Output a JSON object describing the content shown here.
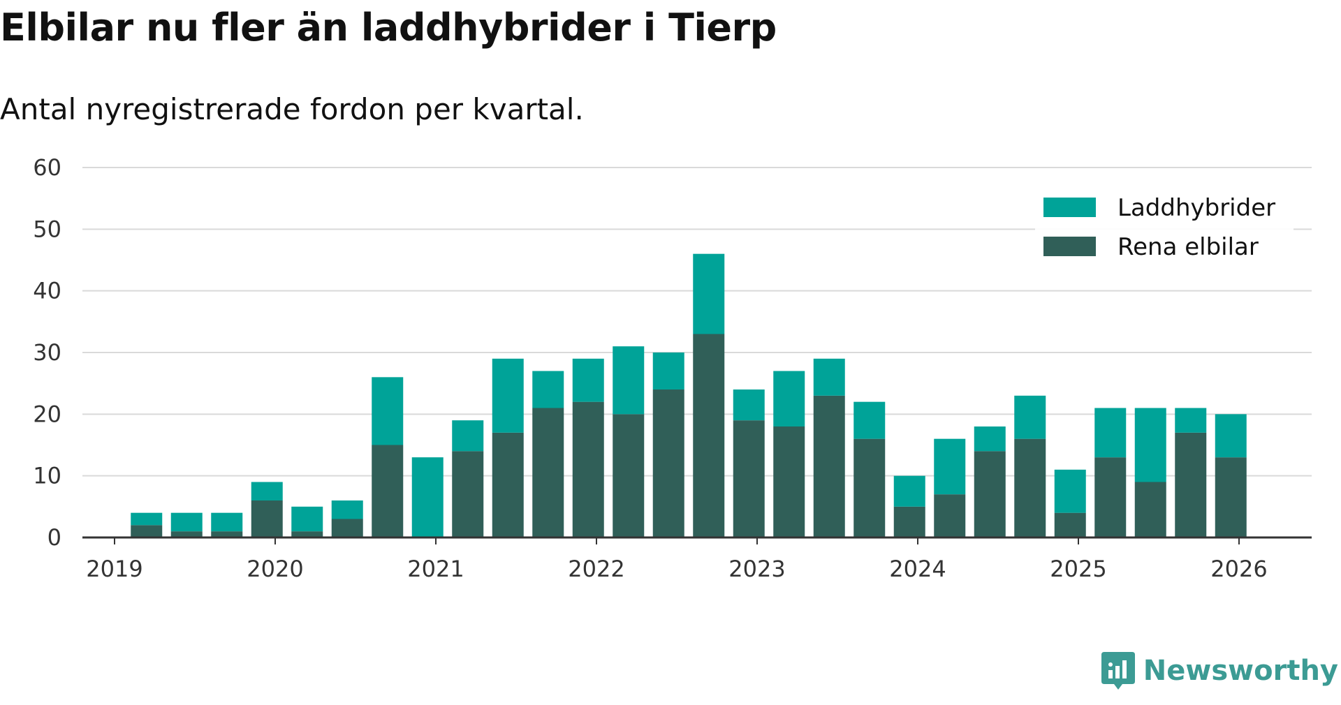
{
  "title": "Elbilar nu fler än laddhybrider i Tierp",
  "subtitle": "Antal nyregistrerade fordon per kvartal.",
  "brand": "Newsworthy",
  "colors": {
    "laddhybrider": "#00a398",
    "rena_elbilar": "#305f58",
    "grid": "#d9d9d9",
    "axis": "#333333",
    "brand": "#3c9b94"
  },
  "chart_data": {
    "type": "bar",
    "stacked": true,
    "categories": [
      "2019-Q1",
      "2019-Q2",
      "2019-Q3",
      "2019-Q4",
      "2020-Q1",
      "2020-Q2",
      "2020-Q3",
      "2020-Q4",
      "2021-Q1",
      "2021-Q2",
      "2021-Q3",
      "2021-Q4",
      "2022-Q1",
      "2022-Q2",
      "2022-Q3",
      "2022-Q4",
      "2023-Q1",
      "2023-Q2",
      "2023-Q3",
      "2023-Q4",
      "2024-Q1",
      "2024-Q2",
      "2024-Q3",
      "2024-Q4",
      "2025-Q1",
      "2025-Q2",
      "2025-Q3",
      "2025-Q4"
    ],
    "series": [
      {
        "name": "Rena elbilar",
        "values": [
          2,
          1,
          1,
          6,
          1,
          3,
          15,
          0,
          14,
          17,
          21,
          22,
          20,
          24,
          33,
          19,
          18,
          23,
          16,
          5,
          7,
          14,
          16,
          4,
          13,
          9,
          17,
          13
        ]
      },
      {
        "name": "Laddhybrider",
        "values": [
          2,
          3,
          3,
          3,
          4,
          3,
          11,
          13,
          5,
          12,
          6,
          7,
          11,
          6,
          13,
          5,
          9,
          6,
          6,
          5,
          9,
          4,
          7,
          7,
          8,
          12,
          4,
          7
        ]
      }
    ],
    "x_tick_labels": [
      "2019",
      "2020",
      "2021",
      "2022",
      "2023",
      "2024",
      "2025",
      "2026"
    ],
    "y_ticks": [
      0,
      10,
      20,
      30,
      40,
      50,
      60
    ],
    "ylim": [
      0,
      60
    ],
    "legend": [
      "Laddhybrider",
      "Rena elbilar"
    ],
    "legend_position": "top-right",
    "grid": true,
    "xlabel": "",
    "ylabel": ""
  }
}
